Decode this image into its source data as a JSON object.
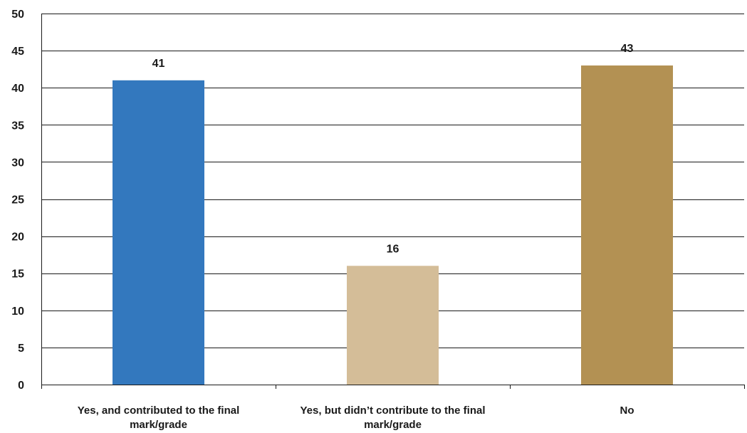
{
  "chart_data": {
    "type": "bar",
    "title": "",
    "xlabel": "",
    "ylabel": "",
    "ylim": [
      0,
      50
    ],
    "ytick_step": 5,
    "grid": true,
    "legend": "none",
    "categories": [
      "Yes, and contributed to the final mark/grade",
      "Yes, but didn’t contribute to the final mark/grade",
      "No"
    ],
    "category_lines": [
      [
        "Yes, and contributed to the final",
        "mark/grade"
      ],
      [
        "Yes, but didn’t contribute to the final",
        "mark/grade"
      ],
      [
        "No"
      ]
    ],
    "values": [
      41,
      16,
      43
    ],
    "colors": [
      "#3378be",
      "#d4bd98",
      "#b39153"
    ]
  }
}
